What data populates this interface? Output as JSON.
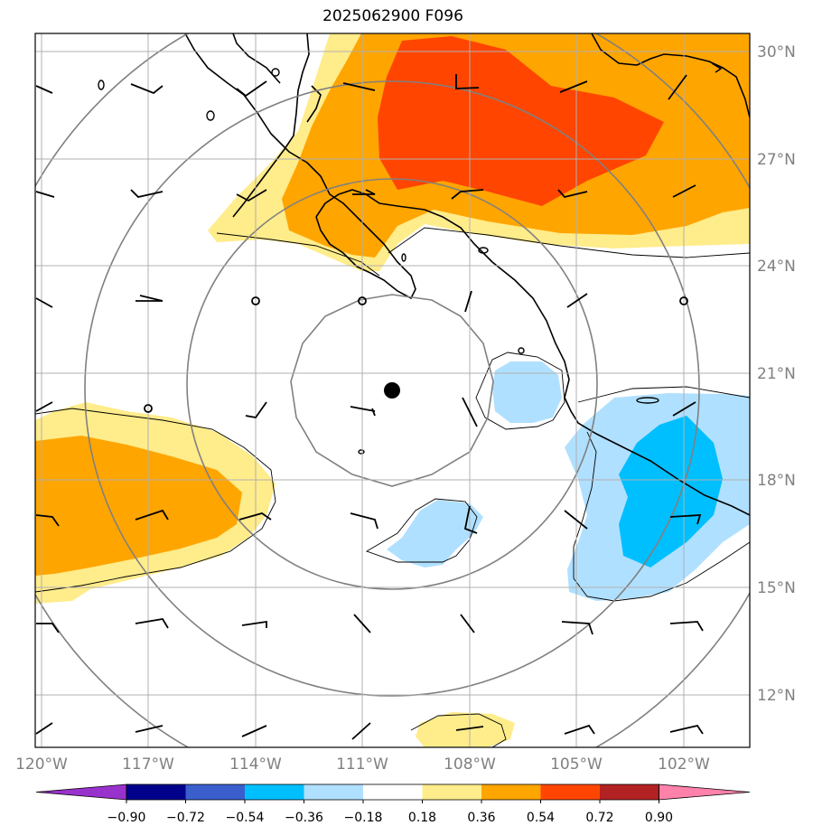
{
  "title": "2025062900 F096",
  "map": {
    "lat_ticks": [
      "30°N",
      "27°N",
      "24°N",
      "21°N",
      "18°N",
      "15°N",
      "12°N"
    ],
    "lon_ticks": [
      "120°W",
      "117°W",
      "114°W",
      "111°W",
      "108°W",
      "105°W",
      "102°W"
    ],
    "extent": {
      "lon": [
        -119.8,
        -99.7
      ],
      "lat": [
        10.5,
        30.5
      ]
    },
    "center_marker": {
      "lon": -110.2,
      "lat": 20.5
    },
    "range_rings": true,
    "gridlines": true,
    "wind_barbs": true
  },
  "colorbar": {
    "ticks": [
      "−0.90",
      "−0.72",
      "−0.54",
      "−0.36",
      "−0.18",
      "0.18",
      "0.36",
      "0.54",
      "0.72",
      "0.90"
    ],
    "colors": [
      "#9932CC",
      "#00008B",
      "#3A5FCD",
      "#00BFFF",
      "#B0E0FF",
      "#FFFFFF",
      "#FFEC8B",
      "#FFA500",
      "#FF4500",
      "#B22222",
      "#FF82AB"
    ],
    "extend": "both"
  }
}
